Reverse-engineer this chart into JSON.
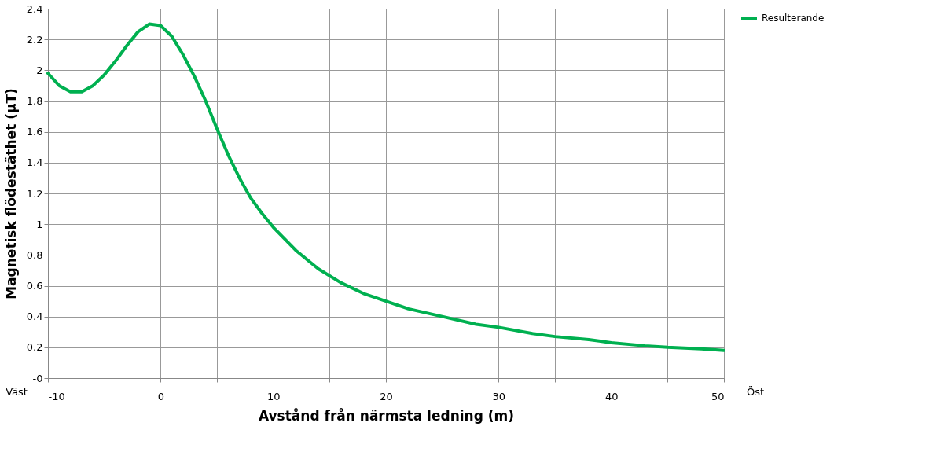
{
  "chart_data": {
    "type": "line",
    "xlabel": "Avstånd från närmsta ledning (m)",
    "ylabel": "Magnetisk flödestäthet (µT)",
    "x": [
      -10,
      -9,
      -8,
      -7,
      -6,
      -5,
      -4,
      -3,
      -2,
      -1,
      0,
      1,
      2,
      3,
      4,
      5,
      6,
      7,
      8,
      9,
      10,
      12,
      14,
      16,
      18,
      20,
      22,
      25,
      28,
      30,
      33,
      35,
      38,
      40,
      43,
      45,
      48,
      50
    ],
    "series": [
      {
        "name": "Resulterande",
        "color": "#00b050",
        "values": [
          1.98,
          1.9,
          1.86,
          1.86,
          1.9,
          1.97,
          2.06,
          2.16,
          2.25,
          2.3,
          2.29,
          2.22,
          2.1,
          1.96,
          1.8,
          1.62,
          1.45,
          1.3,
          1.17,
          1.07,
          0.98,
          0.83,
          0.71,
          0.62,
          0.55,
          0.5,
          0.45,
          0.4,
          0.35,
          0.33,
          0.29,
          0.27,
          0.25,
          0.23,
          0.21,
          0.2,
          0.19,
          0.18
        ]
      }
    ],
    "xlim": [
      -10,
      50
    ],
    "xticks": [
      -10,
      {
        "value": -5,
        "label": null
      },
      0,
      {
        "value": 5,
        "label": null
      },
      10,
      {
        "value": 15,
        "label": null
      },
      20,
      {
        "value": 25,
        "label": null
      },
      30,
      {
        "value": 35,
        "label": null
      },
      40,
      {
        "value": 45,
        "label": null
      },
      50
    ],
    "ylim": [
      0,
      2.4
    ],
    "yticks": [
      {
        "value": 0,
        "label": "-0"
      },
      0.2,
      0.4,
      0.6,
      0.8,
      1,
      1.2,
      1.4,
      1.6,
      1.8,
      2,
      2.2,
      2.4
    ],
    "grid": true,
    "legend": "right",
    "marker": "none",
    "line_style": "solid",
    "annotations": [
      "Väst",
      "Öst"
    ]
  }
}
